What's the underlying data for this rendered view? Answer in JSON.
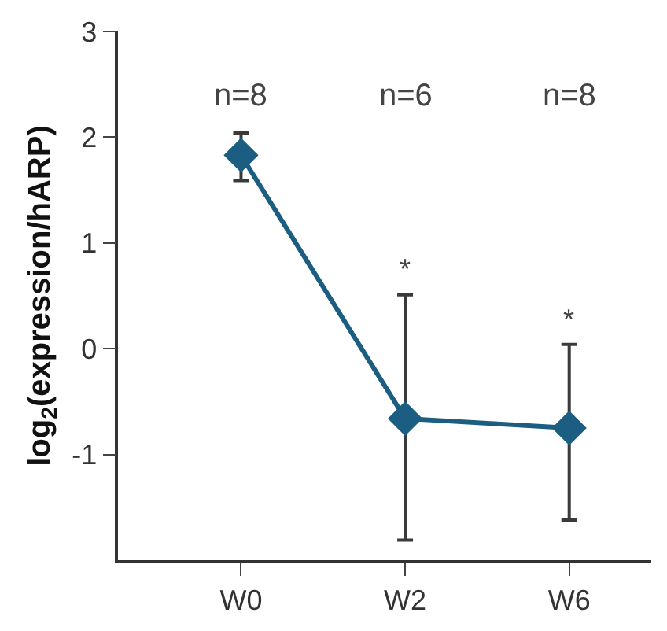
{
  "chart_data": {
    "type": "line",
    "ylabel": "log$_{2}$(expression/hARP)",
    "categories": [
      "W0",
      "W2",
      "W6"
    ],
    "series": [
      {
        "color": "#1b5e82",
        "values": [
          1.83,
          -0.66,
          -0.75
        ],
        "errors": [
          [
            1.59,
            2.04
          ],
          [
            -1.81,
            0.51
          ],
          [
            -1.62,
            0.04
          ]
        ]
      }
    ],
    "ylim": [
      -2,
      3
    ],
    "yticks": [
      -1,
      0,
      1,
      2,
      3
    ],
    "legend": false,
    "marker": "diamond",
    "line_style": "solid",
    "annotations": [
      "n=8",
      "n=6",
      "n=8",
      "*",
      "*"
    ]
  }
}
